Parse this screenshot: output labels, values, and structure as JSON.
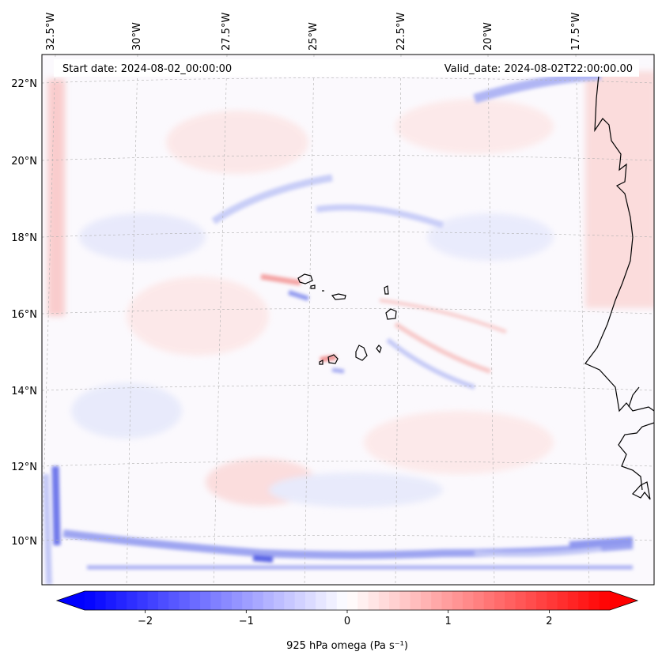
{
  "map": {
    "start_date": "Start date: 2024-08-02_00:00:00",
    "valid_date": "Valid_date: 2024-08-02T22:00:00.00",
    "lon_labels": [
      "32.5°W",
      "30°W",
      "27.5°W",
      "25°W",
      "22.5°W",
      "20°W",
      "17.5°W"
    ],
    "lat_labels": [
      "22°N",
      "20°N",
      "18°N",
      "16°N",
      "14°N",
      "12°N",
      "10°N"
    ],
    "projection_extent": {
      "lon_min": -33.0,
      "lon_max": -15.6,
      "lat_min": 8.9,
      "lat_max": 22.7
    },
    "field": "925 hPa omega",
    "colormap": "bwr",
    "coastline_color": "#000000",
    "gridline_color": "#b0b0b0"
  },
  "colorbar": {
    "label": "925 hPa omega (Pa s⁻¹)",
    "ticks": [
      "−2",
      "−1",
      "0",
      "1",
      "2"
    ],
    "tick_values": [
      -2,
      -1,
      0,
      1,
      2
    ],
    "range": [
      -2.6,
      2.6
    ],
    "extend": "both",
    "min_color": "#0000ff",
    "mid_color": "#ffffff",
    "max_color": "#ff0000"
  }
}
